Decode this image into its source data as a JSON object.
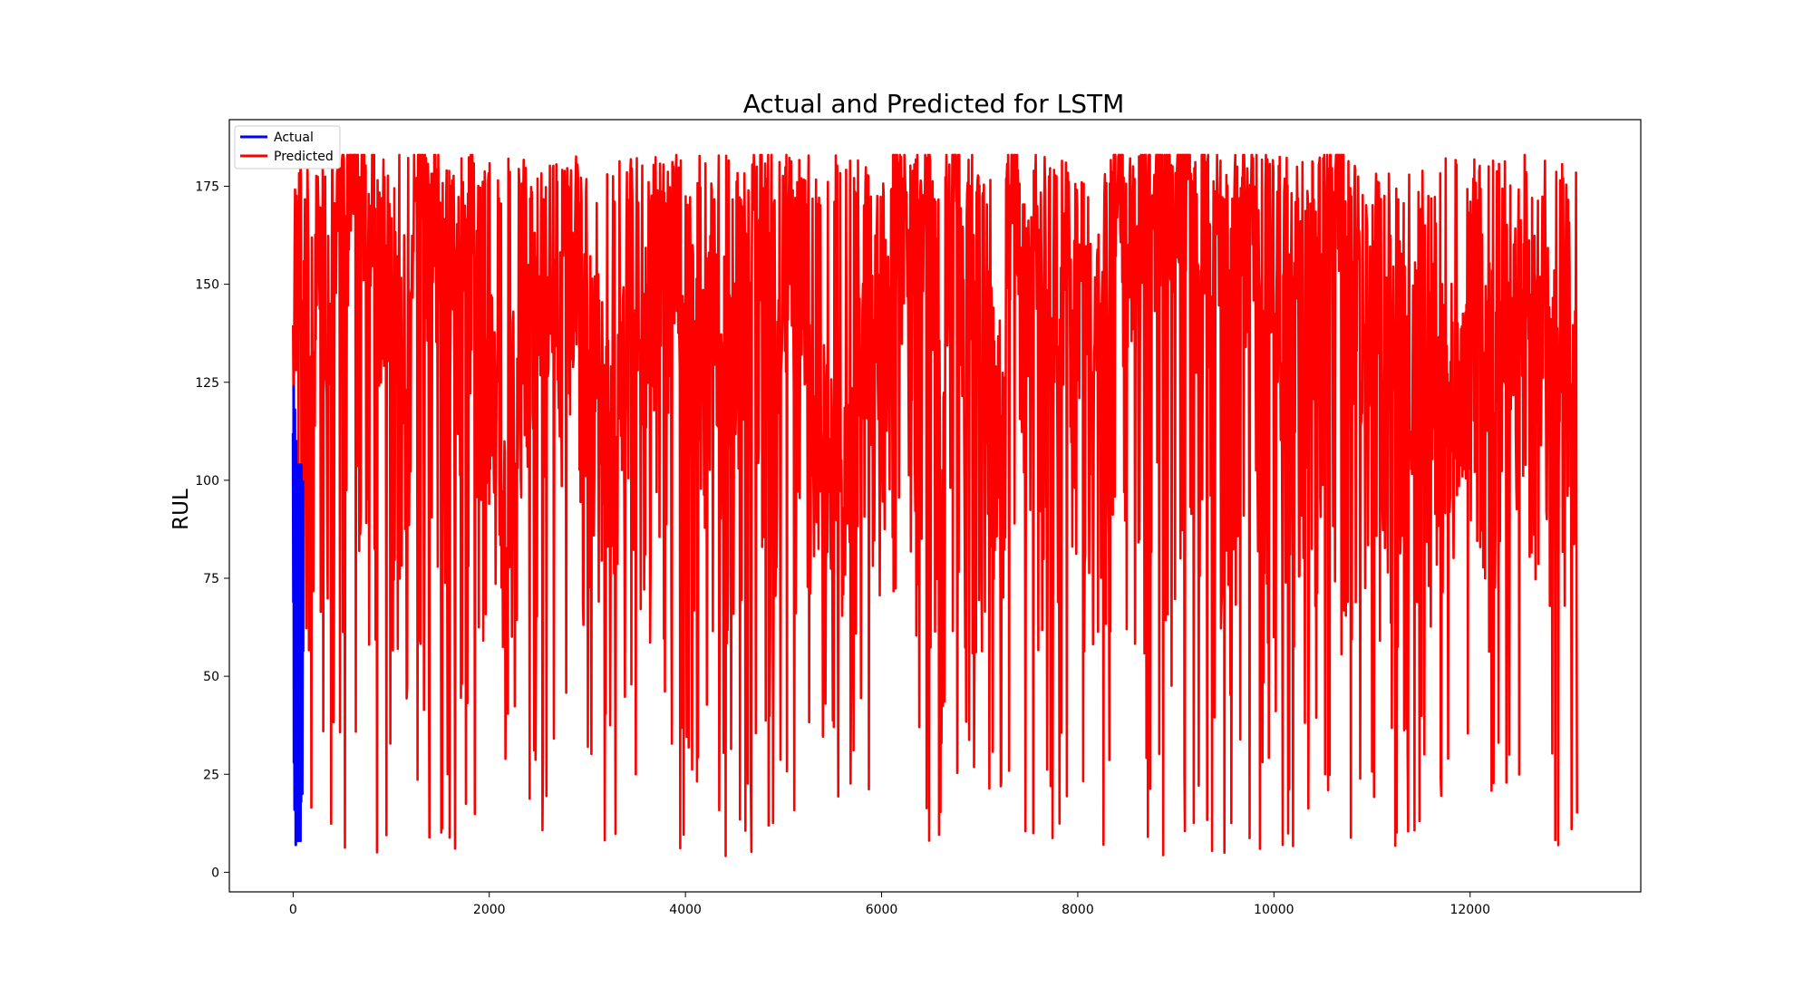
{
  "chart_data": {
    "type": "line",
    "title": "Actual and Predicted for LSTM",
    "xlabel": "",
    "ylabel": "RUL",
    "xlim": [
      -650,
      13740
    ],
    "ylim": [
      -5,
      192
    ],
    "xticks": [
      0,
      2000,
      4000,
      6000,
      8000,
      10000,
      12000
    ],
    "yticks": [
      0,
      25,
      50,
      75,
      100,
      125,
      150,
      175
    ],
    "legend": {
      "position": "top-left",
      "entries": [
        "Actual",
        "Predicted"
      ]
    },
    "series": [
      {
        "name": "Actual",
        "color": "#0000ff",
        "x_range": [
          0,
          100
        ],
        "y_range": [
          7,
          124
        ],
        "points": [
          [
            0,
            112
          ],
          [
            3,
            69
          ],
          [
            6,
            124
          ],
          [
            9,
            28
          ],
          [
            12,
            100
          ],
          [
            15,
            16
          ],
          [
            18,
            118
          ],
          [
            21,
            40
          ],
          [
            24,
            95
          ],
          [
            27,
            7
          ],
          [
            30,
            110
          ],
          [
            33,
            22
          ],
          [
            36,
            88
          ],
          [
            39,
            12
          ],
          [
            42,
            104
          ],
          [
            45,
            35
          ],
          [
            48,
            80
          ],
          [
            51,
            8
          ],
          [
            54,
            97
          ],
          [
            57,
            20
          ],
          [
            60,
            74
          ],
          [
            63,
            10
          ],
          [
            66,
            104
          ],
          [
            69,
            30
          ],
          [
            72,
            86
          ],
          [
            75,
            8
          ],
          [
            78,
            68
          ],
          [
            81,
            18
          ],
          [
            84,
            104
          ],
          [
            87,
            40
          ],
          [
            90,
            92
          ],
          [
            93,
            20
          ],
          [
            96,
            55
          ],
          [
            100,
            100
          ]
        ]
      },
      {
        "name": "Predicted",
        "color": "#ff0000",
        "x_range": [
          0,
          13090
        ],
        "y_range": [
          4,
          183
        ]
      }
    ]
  }
}
